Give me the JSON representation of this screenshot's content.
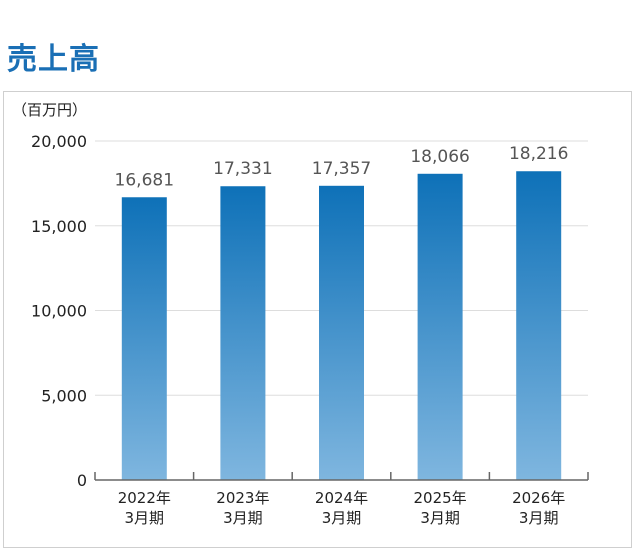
{
  "title": "売上高",
  "colors": {
    "title": "#1a6fb5",
    "bar_top": "#0e71b8",
    "bar_bottom": "#7fb6df"
  },
  "chart_data": {
    "type": "bar",
    "title": "売上高",
    "unit": "（百万円）",
    "categories": [
      [
        "2022年",
        "3月期"
      ],
      [
        "2023年",
        "3月期"
      ],
      [
        "2024年",
        "3月期"
      ],
      [
        "2025年",
        "3月期"
      ],
      [
        "2026年",
        "3月期"
      ]
    ],
    "values": [
      16681,
      17331,
      17357,
      18066,
      18216
    ],
    "value_labels": [
      "16,681",
      "17,331",
      "17,357",
      "18,066",
      "18,216"
    ],
    "ylim": [
      0,
      20000
    ],
    "yticks": [
      0,
      5000,
      10000,
      15000,
      20000
    ],
    "ytick_labels": [
      "0",
      "5,000",
      "10,000",
      "15,000",
      "20,000"
    ],
    "grid": true,
    "legend": "none"
  }
}
